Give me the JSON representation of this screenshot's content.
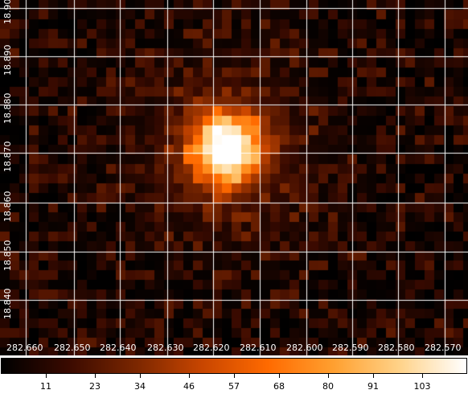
{
  "image": {
    "description_kind": "astronomical-count-map",
    "colormap": [
      "#000000",
      "#3a0a00",
      "#7a2600",
      "#c74500",
      "#ff6a00",
      "#ffa030",
      "#ffd38a",
      "#ffffff"
    ],
    "grid_color": "#ffffff"
  },
  "axes": {
    "ra_labels": [
      "282.660",
      "282.650",
      "282.640",
      "282.630",
      "282.620",
      "282.610",
      "282.600",
      "282.590",
      "282.580",
      "282.570"
    ],
    "dec_labels": [
      "18.890",
      "18.880",
      "18.870",
      "18.860",
      "18.850",
      "18.840"
    ],
    "dec_top_partial": "18.90"
  },
  "colorbar": {
    "ticks": [
      "11",
      "23",
      "34",
      "46",
      "57",
      "68",
      "80",
      "91",
      "103"
    ],
    "min": 0,
    "max": 114
  }
}
